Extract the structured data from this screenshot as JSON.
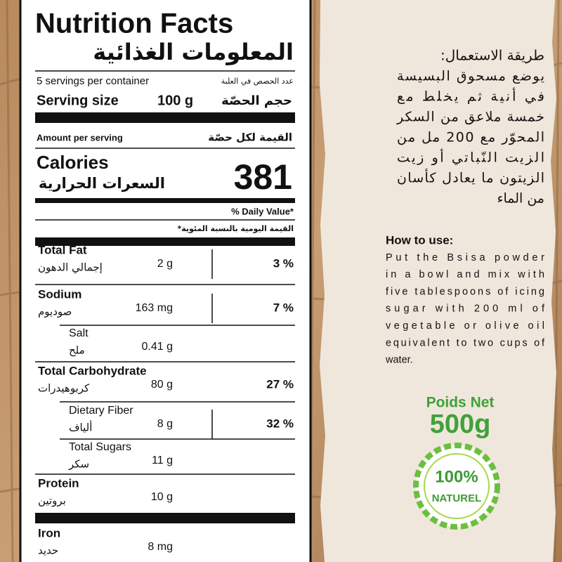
{
  "nutrition": {
    "title": "Nutrition Facts",
    "title_ar": "المعلومات الغذائية",
    "servings": "5 servings per container",
    "servings_ar": "عدد الحصص في العلبة",
    "serving_size_label": "Serving size",
    "serving_size": "100 g",
    "serving_size_ar": "حجم الحصّة",
    "amount_per_serving": "Amount per serving",
    "amount_per_serving_ar": "القيمة لكل حصّة",
    "calories_label": "Calories",
    "calories_label_ar": "السعرات الحرارية",
    "calories": "381",
    "daily_value": "% Daily Value*",
    "daily_value_ar": "القيمة اليومية بالنسبة المئوية*",
    "rows": [
      {
        "name": "Total Fat",
        "name_ar": "إجمالي الدهون",
        "amount": "2 g",
        "dv": "3 %"
      },
      {
        "name": "Sodium",
        "name_ar": "صوديوم",
        "amount": "163 mg",
        "dv": "7 %"
      },
      {
        "name": "Salt",
        "name_ar": "ملح",
        "amount": "0.41 g"
      },
      {
        "name": "Total Carbohydrate",
        "name_ar": "كربوهيدرات",
        "amount": "80 g",
        "dv": "27 %"
      },
      {
        "name": "Dietary Fiber",
        "name_ar": "ألياف",
        "amount": "8 g",
        "dv": "32 %"
      },
      {
        "name": "Total Sugars",
        "name_ar": "سكر",
        "amount": "11 g"
      },
      {
        "name": "Protein",
        "name_ar": "بروتين",
        "amount": "10 g"
      },
      {
        "name": "Iron",
        "name_ar": "حديد",
        "amount": "8 mg"
      }
    ]
  },
  "instructions_ar": {
    "title": "طريقة الاستعمال:",
    "lines": [
      "يوضع مسحوق البسيسة",
      "في أنية ثم يخلط مع",
      "خمسة ملاعق من السكر",
      "المحوّر مع 200 مل من",
      "الزيت النّباتي أو زيت",
      "الزيتون ما يعادل كأسان",
      "من الماء"
    ]
  },
  "instructions": {
    "title": "How to use:",
    "lines": [
      "Put the Bsisa powder",
      "in a bowl and mix with",
      "five tablespoons of icing",
      "sugar with 200 ml of",
      "vegetable or olive oil",
      "equivalent to two cups of",
      "water."
    ]
  },
  "net_weight": {
    "label": "Poids Net",
    "value": "500g"
  },
  "badge": {
    "top": "100%",
    "bottom": "NATUREL"
  }
}
